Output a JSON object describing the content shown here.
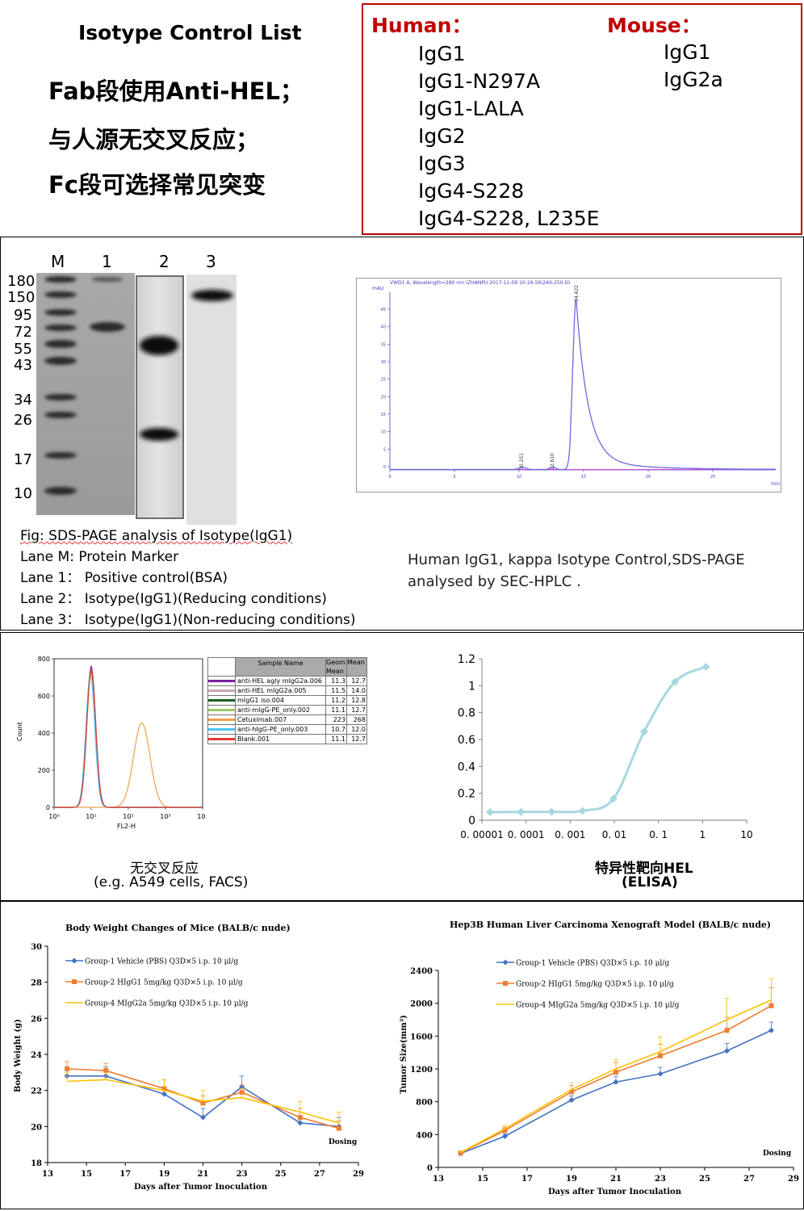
{
  "top": {
    "title": "Isotype Control List",
    "lines": [
      "Fab段使用Anti-HEL；",
      "与人源无交叉反应；",
      "Fc段可选择常见突变"
    ],
    "human_label": "Human：",
    "mouse_label": "Mouse：",
    "human_items": [
      "IgG1",
      "IgG1-N297A",
      "IgG1-LALA",
      "IgG2",
      "IgG3",
      "IgG4-S228",
      "IgG4-S228, L235E"
    ],
    "mouse_items": [
      "IgG1",
      "IgG2a"
    ]
  },
  "sds": {
    "lane_labels": [
      "M",
      "1",
      "2",
      "3"
    ],
    "markers": [
      "180",
      "150",
      "95",
      "72",
      "55",
      "43",
      "34",
      "26",
      "17",
      "10"
    ],
    "caption": [
      "Fig: SDS-PAGE analysis of Isotype(IgG1)",
      "Lane M: Protein Marker",
      "Lane 1： Positive control(BSA)",
      "Lane 2： Isotype(IgG1)(Reducing conditions)",
      "Lane 3： Isotype(IgG1)(Non-reducing conditions)"
    ]
  },
  "hplc": {
    "header": "VWD1 A, Wavelength=280 nm (ZHANPU 2017-11-09 10-16-56\\249-250.D)",
    "unit": "mAU",
    "xunit": "min",
    "peaks": [
      "10.251",
      "12.610",
      "14.422"
    ],
    "caption": "Human IgG1, kappa Isotype Control,SDS-PAGE analysed by SEC-HPLC ."
  },
  "facs": {
    "ylabel": "Count",
    "xlabel": "FL2-H",
    "table_headers": [
      "Sample Name",
      "Geom Mean",
      "Mean"
    ],
    "rows": [
      {
        "name": "anti-HEL agly mIgG2a.006",
        "geo": "11.3",
        "mean": "12.7",
        "color": "#7b1fa2"
      },
      {
        "name": "anti-HEL mIgG2a.005",
        "geo": "11.5",
        "mean": "14.0",
        "color": "#c8a8b8"
      },
      {
        "name": "mIgG1 iso.004",
        "geo": "11.2",
        "mean": "12.8",
        "color": "#1b5e20"
      },
      {
        "name": "anti-mIgG-PE_only.002",
        "geo": "11.1",
        "mean": "12.7",
        "color": "#9ccc65"
      },
      {
        "name": "Cetuximab.007",
        "geo": "223",
        "mean": "268",
        "color": "#f0a050"
      },
      {
        "name": "anti-hIgG-PE_only.003",
        "geo": "10.7",
        "mean": "12.0",
        "color": "#4fc3f7"
      },
      {
        "name": "Blank.001",
        "geo": "11.1",
        "mean": "12.7",
        "color": "#e53935"
      }
    ],
    "caption1": "无交叉反应",
    "caption2": "(e.g. A549 cells, FACS)"
  },
  "elisa": {
    "caption1": "特异性靶向HEL",
    "caption2": "(ELISA)"
  },
  "chart_data": [
    {
      "id": "facs",
      "type": "line",
      "xscale": "log",
      "xlim": [
        1,
        10000
      ],
      "ylim": [
        0,
        800
      ],
      "xlabel": "FL2-H",
      "ylabel": "Count",
      "yticks": [
        "0",
        "200",
        "400",
        "600",
        "800"
      ],
      "xticks": [
        "10⁰",
        "10¹",
        "10²",
        "10³",
        "10⁴"
      ],
      "series": [
        {
          "name": "anti-HEL agly mIgG2a.006",
          "peak_x": 10,
          "peak_y": 760
        },
        {
          "name": "anti-HEL mIgG2a.005",
          "peak_x": 10,
          "peak_y": 745
        },
        {
          "name": "mIgG1 iso.004",
          "peak_x": 10,
          "peak_y": 730
        },
        {
          "name": "anti-mIgG-PE_only.002",
          "peak_x": 10,
          "peak_y": 720
        },
        {
          "name": "Cetuximab.007",
          "peak_x": 230,
          "peak_y": 455
        },
        {
          "name": "anti-hIgG-PE_only.003",
          "peak_x": 9.5,
          "peak_y": 715
        },
        {
          "name": "Blank.001",
          "peak_x": 10,
          "peak_y": 740
        }
      ]
    },
    {
      "id": "elisa",
      "type": "line",
      "xscale": "log",
      "xlim": [
        1e-05,
        10
      ],
      "ylim": [
        0,
        1.2
      ],
      "xticks": [
        "0. 00001",
        "0. 0001",
        "0. 001",
        "0. 01",
        "0. 1",
        "1",
        "10"
      ],
      "yticks": [
        "0",
        "0.2",
        "0.4",
        "0.6",
        "0.8",
        "1",
        "1.2"
      ],
      "x": [
        1.53e-05,
        7.63e-05,
        0.000381,
        0.00191,
        0.00954,
        0.0477,
        0.238,
        1.19
      ],
      "y": [
        0.06,
        0.062,
        0.063,
        0.07,
        0.16,
        0.66,
        1.03,
        1.14
      ]
    },
    {
      "id": "bw",
      "type": "line",
      "title": "Body Weight Changes of Mice (BALB/c nude)",
      "xlabel": "Days after Tumor Inoculation",
      "ylabel": "Body Weight (g)",
      "xlim": [
        13,
        29
      ],
      "ylim": [
        18,
        30
      ],
      "xticks": [
        "13",
        "15",
        "17",
        "19",
        "21",
        "23",
        "25",
        "27",
        "29"
      ],
      "yticks": [
        "18",
        "20",
        "22",
        "24",
        "26",
        "28",
        "30"
      ],
      "dosing_label": "Dosing",
      "x": [
        14,
        16,
        19,
        21,
        23,
        26,
        28
      ],
      "series": [
        {
          "name": "Group-1 Vehicle (PBS) Q3D×5 i.p. 10 μl/g",
          "color": "#4472c4",
          "marker": "diamond",
          "values": [
            22.8,
            22.8,
            21.8,
            20.5,
            22.2,
            20.2,
            20.0
          ],
          "err": [
            0.5,
            0.5,
            0.4,
            0.5,
            0.6,
            0.4,
            0.5
          ]
        },
        {
          "name": "Group-2 HIgG1 5mg/kg Q3D×5 i.p. 10 μl/g",
          "color": "#ed7d31",
          "marker": "square",
          "values": [
            23.2,
            23.1,
            22.1,
            21.3,
            21.9,
            20.5,
            19.9
          ],
          "err": [
            0.4,
            0.4,
            0.5,
            0.4,
            0.4,
            0.5,
            0.4
          ]
        },
        {
          "name": "Group-4 MIgG2a 5mg/kg Q3D×5 i.p. 10 μl/g",
          "color": "#ffc000",
          "marker": "none",
          "values": [
            22.5,
            22.6,
            22.0,
            21.4,
            21.6,
            20.8,
            20.2
          ],
          "err": [
            0.5,
            0.4,
            0.6,
            0.6,
            0.5,
            0.6,
            0.6
          ]
        }
      ]
    },
    {
      "id": "tv",
      "type": "line",
      "title": "Hep3B Human Liver Carcinoma Xenograft Model (BALB/c nude)",
      "xlabel": "Days after Tumor Inoculation",
      "ylabel": "Tumor Size(mm³)",
      "xlim": [
        13,
        29
      ],
      "ylim": [
        0,
        2400
      ],
      "xticks": [
        "13",
        "15",
        "17",
        "19",
        "21",
        "23",
        "25",
        "27",
        "29"
      ],
      "yticks": [
        "0",
        "400",
        "800",
        "1200",
        "1600",
        "2000",
        "2400"
      ],
      "dosing_label": "Dosing",
      "x": [
        14,
        16,
        19,
        21,
        23,
        26,
        28
      ],
      "series": [
        {
          "name": "Group-1 Vehicle (PBS) Q3D×5 i.p. 10 μl/g",
          "color": "#4472c4",
          "marker": "diamond",
          "values": [
            170,
            380,
            820,
            1040,
            1140,
            1420,
            1670
          ],
          "err": [
            15,
            30,
            50,
            70,
            80,
            90,
            100
          ]
        },
        {
          "name": "Group-2 HIgG1 5mg/kg Q3D×5 i.p. 10 μl/g",
          "color": "#ed7d31",
          "marker": "square",
          "values": [
            175,
            450,
            920,
            1160,
            1360,
            1670,
            1970
          ],
          "err": [
            15,
            40,
            80,
            120,
            140,
            160,
            220
          ]
        },
        {
          "name": "Group-4 MIgG2a 5mg/kg Q3D×5 i.p. 10 μl/g",
          "color": "#ffc000",
          "marker": "none",
          "values": [
            180,
            470,
            950,
            1200,
            1410,
            1800,
            2040
          ],
          "err": [
            15,
            40,
            80,
            110,
            180,
            260,
            260
          ]
        }
      ]
    }
  ]
}
